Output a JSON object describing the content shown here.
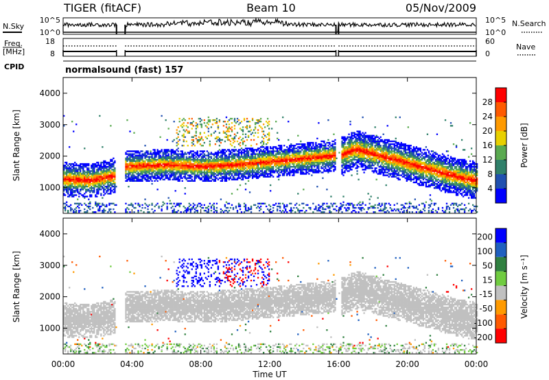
{
  "header": {
    "station": "TIGER (fitACF)",
    "beam": "Beam 10",
    "date": "05/Nov/2009"
  },
  "aux_panels": {
    "nsky_label": "N.Sky",
    "nsearch_label": "N.Search",
    "freq_label_1": "Freq.",
    "freq_label_2": "[MHz]",
    "nave_label": "Nave",
    "cpid_label": "CPID",
    "cpid_value": "normalsound (fast) 157",
    "left_ticks_top": [
      "10^5",
      "10^0"
    ],
    "right_ticks_top": [
      "10^5",
      "10^0"
    ],
    "left_ticks_freq": [
      "18",
      "8"
    ],
    "right_ticks_nave": [
      "60",
      "0"
    ]
  },
  "chart_data": [
    {
      "type": "heatmap",
      "title": "Power",
      "ylabel": "Slant Range [km]",
      "xlabel": "Time UT",
      "x_ticks": [
        "00:00",
        "04:00",
        "08:00",
        "12:00",
        "16:00",
        "20:00",
        "00:00"
      ],
      "y_ticks": [
        "1000",
        "2000",
        "3000",
        "4000"
      ],
      "xlim_hours": [
        0,
        24
      ],
      "ylim_km": [
        180,
        4500
      ],
      "colorbar_label": "Power [dB]",
      "colorbar_ticks": [
        "4",
        "8",
        "12",
        "16",
        "20",
        "24",
        "28"
      ],
      "colorbar_range": [
        0,
        30
      ],
      "colors": [
        "#0000ff",
        "#2050b0",
        "#30806a",
        "#5aaa50",
        "#e8d000",
        "#ff9a00",
        "#ff5a00",
        "#ff0000"
      ],
      "data_gaps_hours": [
        [
          3.1,
          3.6
        ],
        [
          15.85,
          16.0
        ]
      ],
      "features": [
        {
          "name": "main band 1",
          "t": [
            0.0,
            1.5,
            3.0
          ],
          "center_km": [
            1250,
            1200,
            1350
          ],
          "width_km": 550
        },
        {
          "name": "main band 2",
          "t": [
            3.6,
            6,
            8,
            10,
            12,
            14,
            15.8
          ],
          "center_km": [
            1650,
            1700,
            1650,
            1700,
            1800,
            1900,
            2000
          ],
          "width_km": 500
        },
        {
          "name": "main band 3",
          "t": [
            16.1,
            17,
            19,
            21,
            23,
            24
          ],
          "center_km": [
            2000,
            2200,
            1900,
            1600,
            1300,
            1200
          ],
          "width_km": 600
        }
      ]
    },
    {
      "type": "heatmap",
      "title": "Velocity",
      "ylabel": "Slant Range [km]",
      "xlabel": "Time UT",
      "x_ticks": [
        "00:00",
        "04:00",
        "08:00",
        "12:00",
        "16:00",
        "20:00",
        "00:00"
      ],
      "y_ticks": [
        "1000",
        "2000",
        "3000",
        "4000"
      ],
      "xlim_hours": [
        0,
        24
      ],
      "ylim_km": [
        180,
        4500
      ],
      "colorbar_label": "Velocity [m s⁻¹]",
      "colorbar_ticks": [
        "200",
        "100",
        "50",
        "15",
        "-15",
        "-50",
        "-100",
        "-200"
      ],
      "colors": [
        "#0000ff",
        "#2060c0",
        "#308040",
        "#70cc40",
        "#c0c0c0",
        "#ff9a00",
        "#ff5a00",
        "#ff0000"
      ],
      "data_gaps_hours": [
        [
          3.1,
          3.6
        ],
        [
          15.85,
          16.0
        ]
      ]
    }
  ]
}
